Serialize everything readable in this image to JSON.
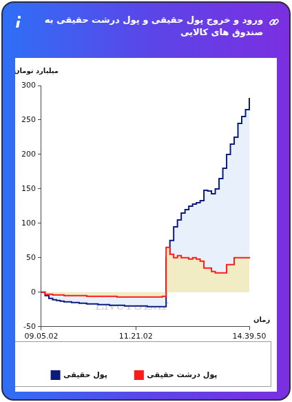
{
  "chart_data": {
    "type": "area",
    "title": "ورود و خروج پول حقیقی و پول درشت حقیقی به صندوق های کالایی",
    "x_label": "زمان",
    "y_label": "میلیارد تومان",
    "annotations": [
      {
        "text": "LiveTSE.ir"
      }
    ],
    "categories": [
      "09.05.02",
      null,
      null,
      null,
      null,
      null,
      null,
      null,
      null,
      null,
      null,
      null,
      null,
      null,
      null,
      null,
      null,
      null,
      null,
      null,
      null,
      null,
      null,
      null,
      null,
      "11.21.02",
      null,
      null,
      null,
      null,
      null,
      null,
      null,
      null,
      null,
      null,
      null,
      null,
      null,
      null,
      null,
      null,
      null,
      null,
      null,
      null,
      null,
      null,
      null,
      null,
      null,
      null,
      null,
      null,
      null,
      "14.39.50"
    ],
    "series": [
      {
        "name": "پول حقیقی",
        "color": "#0b1a7d",
        "line_style": "steps",
        "values": [
          0,
          -5,
          -9,
          -11,
          -12,
          -13,
          -14,
          -14,
          -15,
          -15,
          -16,
          -16,
          -17,
          -17,
          -17,
          -18,
          -18,
          -18,
          -19,
          -19,
          -19,
          -19,
          -20,
          -20,
          -20,
          -20,
          -20,
          -20,
          -21,
          -21,
          -21,
          -21,
          -21,
          50,
          75,
          95,
          105,
          115,
          120,
          125,
          128,
          130,
          133,
          148,
          147,
          143,
          150,
          165,
          180,
          200,
          215,
          225,
          245,
          255,
          265,
          282
        ]
      },
      {
        "name": "پول درشت حقیقی",
        "color": "#ff1a1a",
        "line_style": "steps",
        "values": [
          0,
          -3,
          -3,
          -4,
          -4,
          -4,
          -5,
          -5,
          -5,
          -5,
          -5,
          -5,
          -6,
          -6,
          -6,
          -6,
          -6,
          -6,
          -6,
          -6,
          -7,
          -7,
          -7,
          -7,
          -7,
          -7,
          -7,
          -7,
          -7,
          -7,
          -7,
          -7,
          -6,
          65,
          55,
          50,
          53,
          50,
          50,
          48,
          50,
          48,
          45,
          35,
          35,
          30,
          28,
          28,
          28,
          40,
          40,
          50,
          50,
          50,
          50,
          51
        ]
      }
    ],
    "ylim": [
      -50,
      300
    ],
    "yticks": [
      -50,
      0,
      50,
      100,
      150,
      200,
      250,
      300
    ],
    "grid": false,
    "legend": "bottom"
  }
}
